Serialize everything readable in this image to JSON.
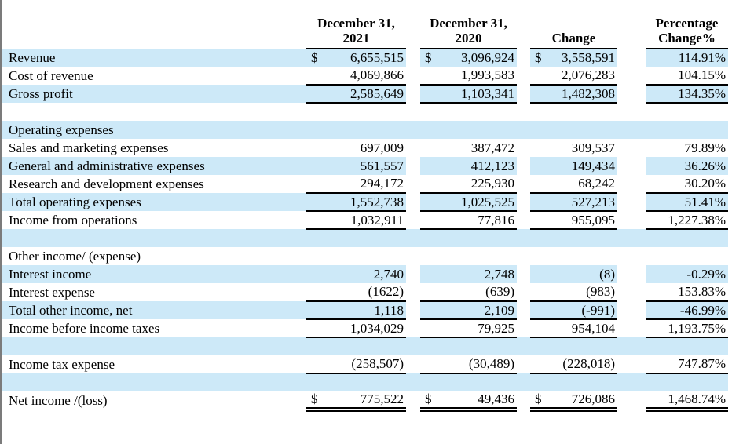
{
  "colors": {
    "row_highlight": "#cde9f8",
    "rule": "#000000",
    "page_edge": "#7b7b7b"
  },
  "table": {
    "columns": {
      "col_2021": {
        "line1": "December 31,",
        "line2": "2021"
      },
      "col_2020": {
        "line1": "December 31,",
        "line2": "2020"
      },
      "col_change": {
        "label": "Change"
      },
      "col_pct": {
        "line1": "Percentage",
        "line2": "Change%"
      }
    },
    "rows": [
      {
        "type": "data",
        "label": "Revenue",
        "cur1": "$",
        "v1": "6,655,515",
        "cur2": "$",
        "v2": "3,096,924",
        "cur3": "$",
        "v3": "3,558,591",
        "pct": "114.91%",
        "bg": "blue",
        "underline": "none"
      },
      {
        "type": "data",
        "label": "Cost of revenue",
        "cur1": "",
        "v1": "4,069,866",
        "cur2": "",
        "v2": "1,993,583",
        "cur3": "",
        "v3": "2,076,283",
        "pct": "104.15%",
        "bg": "white",
        "underline": "single"
      },
      {
        "type": "data",
        "label": "Gross profit",
        "cur1": "",
        "v1": "2,585,649",
        "cur2": "",
        "v2": "1,103,341",
        "cur3": "",
        "v3": "1,482,308",
        "pct": "134.35%",
        "bg": "blue",
        "underline": "single"
      },
      {
        "type": "spacer",
        "bg": "white"
      },
      {
        "type": "section",
        "label": "Operating expenses",
        "bg": "blue"
      },
      {
        "type": "data",
        "label": "Sales and marketing expenses",
        "cur1": "",
        "v1": "697,009",
        "cur2": "",
        "v2": "387,472",
        "cur3": "",
        "v3": "309,537",
        "pct": "79.89%",
        "bg": "white",
        "underline": "none"
      },
      {
        "type": "data",
        "label": "General and administrative expenses",
        "cur1": "",
        "v1": "561,557",
        "cur2": "",
        "v2": "412,123",
        "cur3": "",
        "v3": "149,434",
        "pct": "36.26%",
        "bg": "blue",
        "underline": "none"
      },
      {
        "type": "data",
        "label": "Research and development expenses",
        "cur1": "",
        "v1": "294,172",
        "cur2": "",
        "v2": "225,930",
        "cur3": "",
        "v3": "68,242",
        "pct": "30.20%",
        "bg": "white",
        "underline": "single"
      },
      {
        "type": "data",
        "label": "Total operating expenses",
        "cur1": "",
        "v1": "1,552,738",
        "cur2": "",
        "v2": "1,025,525",
        "cur3": "",
        "v3": "527,213",
        "pct": "51.41%",
        "bg": "blue",
        "underline": "single"
      },
      {
        "type": "data",
        "label": "Income from operations",
        "cur1": "",
        "v1": "1,032,911",
        "cur2": "",
        "v2": "77,816",
        "cur3": "",
        "v3": "955,095",
        "pct": "1,227.38%",
        "bg": "white",
        "underline": "single"
      },
      {
        "type": "spacer",
        "bg": "blue"
      },
      {
        "type": "section",
        "label": "Other income/ (expense)",
        "bg": "white"
      },
      {
        "type": "data",
        "label": "Interest income",
        "cur1": "",
        "v1": "2,740",
        "cur2": "",
        "v2": "2,748",
        "cur3": "",
        "v3": "(8)",
        "pct": "-0.29%",
        "bg": "blue",
        "underline": "none"
      },
      {
        "type": "data",
        "label": "Interest expense",
        "cur1": "",
        "v1": "(1622)",
        "cur2": "",
        "v2": "(639)",
        "cur3": "",
        "v3": "(983)",
        "pct": "153.83%",
        "bg": "white",
        "underline": "single"
      },
      {
        "type": "data",
        "label": "Total other income, net",
        "cur1": "",
        "v1": "1,118",
        "cur2": "",
        "v2": "2,109",
        "cur3": "",
        "v3": "(-991)",
        "pct": "-46.99%",
        "bg": "blue",
        "underline": "single"
      },
      {
        "type": "data",
        "label": "Income before income taxes",
        "cur1": "",
        "v1": "1,034,029",
        "cur2": "",
        "v2": "79,925",
        "cur3": "",
        "v3": "954,104",
        "pct": "1,193.75%",
        "bg": "white",
        "underline": "single"
      },
      {
        "type": "spacer",
        "bg": "blue"
      },
      {
        "type": "data",
        "label": "Income tax expense",
        "cur1": "",
        "v1": "(258,507)",
        "cur2": "",
        "v2": "(30,489)",
        "cur3": "",
        "v3": "(228,018)",
        "pct": "747.87%",
        "bg": "white",
        "underline": "single"
      },
      {
        "type": "spacer",
        "bg": "blue"
      },
      {
        "type": "data",
        "label": "Net income /(loss)",
        "cur1": "$",
        "v1": "775,522",
        "cur2": "$",
        "v2": "49,436",
        "cur3": "$",
        "v3": "726,086",
        "pct": "1,468.74%",
        "bg": "white",
        "underline": "double"
      }
    ]
  }
}
